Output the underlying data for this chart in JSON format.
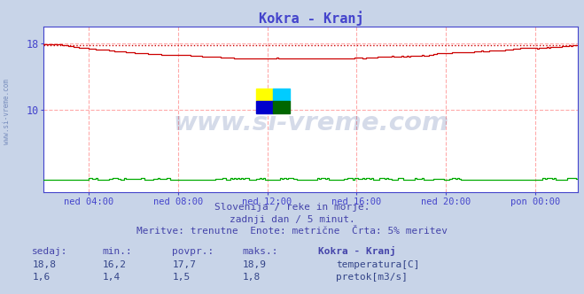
{
  "title": "Kokra - Kranj",
  "title_color": "#4444cc",
  "bg_color": "#c8d4e8",
  "plot_bg_color": "#ffffff",
  "grid_color": "#ffaaaa",
  "axis_color": "#4444cc",
  "text_color": "#4444aa",
  "ylim": [
    0,
    20
  ],
  "xlabel_ticks": [
    "ned 04:00",
    "ned 08:00",
    "ned 12:00",
    "ned 16:00",
    "ned 20:00",
    "pon 00:00"
  ],
  "temp_color": "#cc0000",
  "flow_color": "#00aa00",
  "avg_line_color": "#cc0000",
  "avg_line_value": 17.7,
  "temp_min": 16.2,
  "temp_max": 18.9,
  "temp_avg": 17.7,
  "temp_sedaj": 18.8,
  "flow_min": 1.4,
  "flow_max": 1.8,
  "flow_avg": 1.5,
  "flow_sedaj": 1.6,
  "subtitle1": "Slovenija / reke in morje.",
  "subtitle2": "zadnji dan / 5 minut.",
  "subtitle3": "Meritve: trenutne  Enote: metrične  Črta: 5% meritev",
  "watermark": "www.si-vreme.com",
  "watermark_color": "#1a3a8a",
  "watermark_alpha": 0.18,
  "left_text": "www.si-vreme.com"
}
